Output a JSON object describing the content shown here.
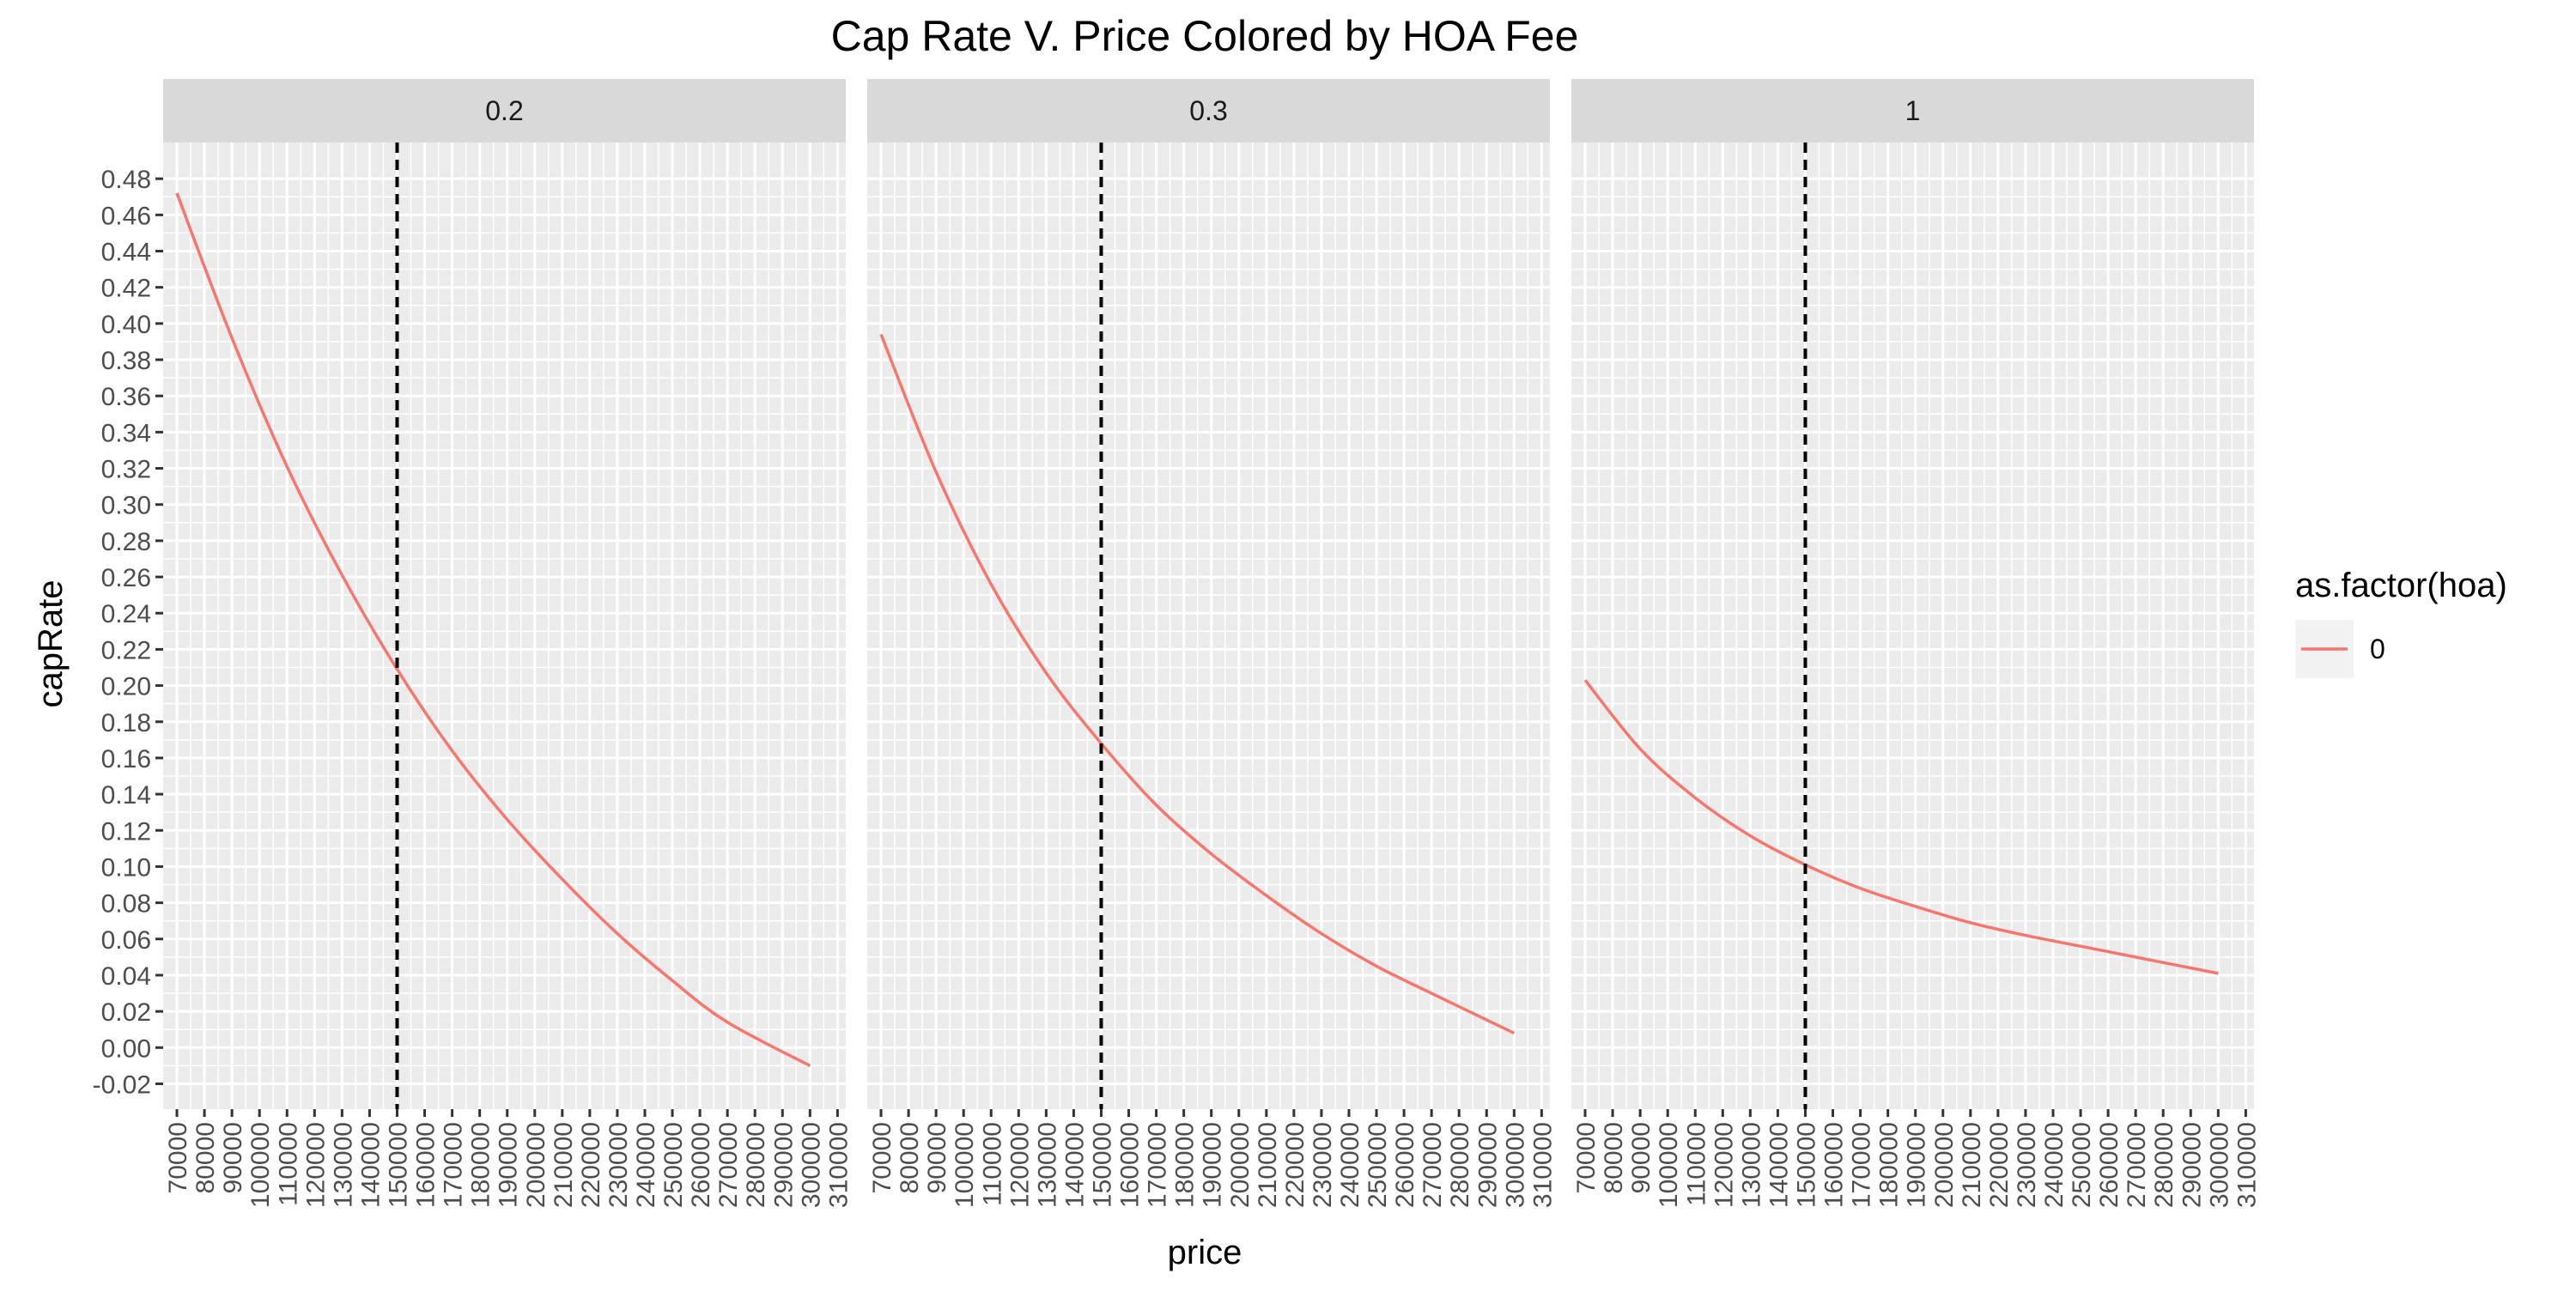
{
  "chart_data": {
    "type": "line",
    "title": "Cap Rate V. Price Colored by HOA Fee",
    "xlabel": "price",
    "ylabel": "capRate",
    "xlim": [
      65000,
      313000
    ],
    "ylim": [
      -0.034,
      0.5
    ],
    "x_ticks": [
      70000,
      80000,
      90000,
      100000,
      110000,
      120000,
      130000,
      140000,
      150000,
      160000,
      170000,
      180000,
      190000,
      200000,
      210000,
      220000,
      230000,
      240000,
      250000,
      260000,
      270000,
      280000,
      290000,
      300000,
      310000
    ],
    "y_ticks": [
      -0.02,
      0.0,
      0.02,
      0.04,
      0.06,
      0.08,
      0.1,
      0.12,
      0.14,
      0.16,
      0.18,
      0.2,
      0.22,
      0.24,
      0.26,
      0.28,
      0.3,
      0.32,
      0.34,
      0.36,
      0.38,
      0.4,
      0.42,
      0.44,
      0.46,
      0.48
    ],
    "y_tick_labels": [
      "-0.02",
      "0.00",
      "0.02",
      "0.04",
      "0.06",
      "0.08",
      "0.10",
      "0.12",
      "0.14",
      "0.16",
      "0.18",
      "0.20",
      "0.22",
      "0.24",
      "0.26",
      "0.28",
      "0.30",
      "0.32",
      "0.34",
      "0.36",
      "0.38",
      "0.40",
      "0.42",
      "0.44",
      "0.46",
      "0.48"
    ],
    "vline": {
      "x": 150000,
      "style": "dashed",
      "color": "#000000"
    },
    "grid": true,
    "legend": {
      "title": "as.factor(hoa)",
      "position": "right",
      "entries": [
        {
          "label": "0",
          "color": "#F8766D"
        }
      ]
    },
    "panels": [
      {
        "label": "0.2",
        "series": [
          {
            "hoa": "0",
            "color": "#F8766D",
            "x": [
              70000,
              90000,
              110000,
              130000,
              150000,
              170000,
              190000,
              210000,
              230000,
              250000,
              270000,
              300000
            ],
            "y": [
              0.472,
              0.392,
              0.321,
              0.261,
              0.209,
              0.164,
              0.126,
              0.093,
              0.063,
              0.037,
              0.014,
              -0.01
            ]
          }
        ]
      },
      {
        "label": "0.3",
        "series": [
          {
            "hoa": "0",
            "color": "#F8766D",
            "x": [
              70000,
              90000,
              110000,
              130000,
              150000,
              170000,
              190000,
              210000,
              230000,
              250000,
              270000,
              300000
            ],
            "y": [
              0.394,
              0.318,
              0.256,
              0.207,
              0.168,
              0.134,
              0.107,
              0.084,
              0.063,
              0.045,
              0.03,
              0.008
            ]
          }
        ]
      },
      {
        "label": "1",
        "series": [
          {
            "hoa": "0",
            "color": "#F8766D",
            "x": [
              70000,
              90000,
              110000,
              130000,
              150000,
              170000,
              190000,
              210000,
              230000,
              250000,
              270000,
              300000
            ],
            "y": [
              0.203,
              0.165,
              0.138,
              0.117,
              0.101,
              0.088,
              0.078,
              0.069,
              0.062,
              0.056,
              0.05,
              0.041
            ]
          }
        ]
      }
    ]
  }
}
